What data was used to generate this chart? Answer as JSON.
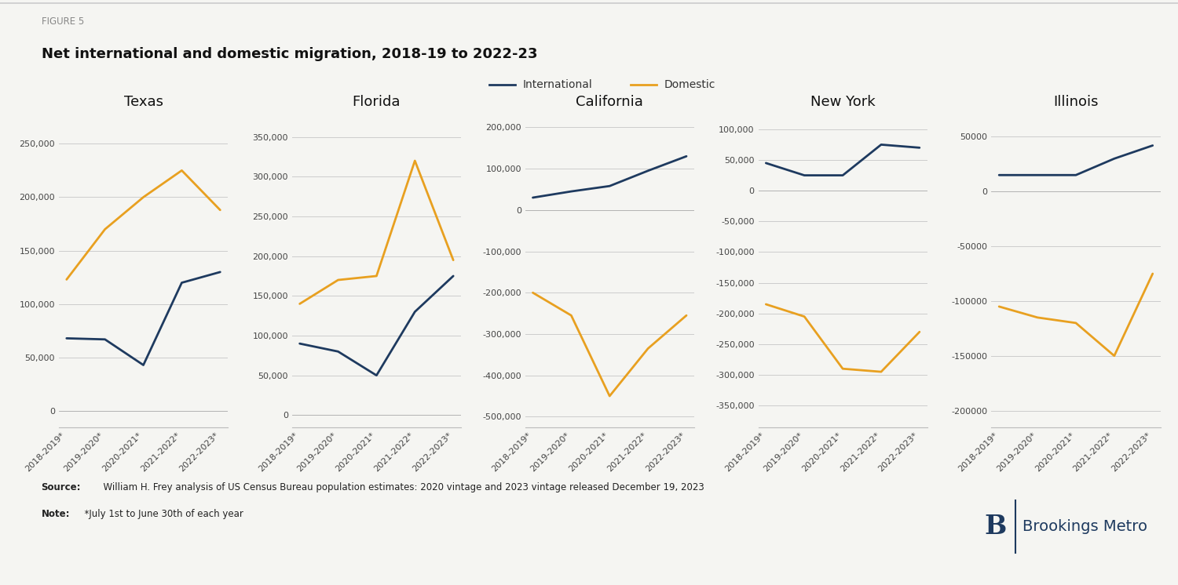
{
  "figure_label": "FIGURE 5",
  "title": "Net international and domestic migration, 2018-19 to 2022-23",
  "x_labels": [
    "2018-2019*",
    "2019-2020*",
    "2020-2021*",
    "2021-2022*",
    "2022-2023*"
  ],
  "international_color": "#1e3a5f",
  "domestic_color": "#e8a020",
  "background_color": "#f5f5f2",
  "panels": [
    {
      "title": "Texas",
      "international": [
        68000,
        67000,
        43000,
        120000,
        130000
      ],
      "domestic": [
        123000,
        170000,
        200000,
        225000,
        188000
      ],
      "ylim": [
        -15000,
        275000
      ],
      "yticks": [
        0,
        50000,
        100000,
        150000,
        200000,
        250000
      ],
      "yticklabels": [
        "0",
        "50,000",
        "100,000",
        "150,000",
        "200,000",
        "250,000"
      ]
    },
    {
      "title": "Florida",
      "international": [
        90000,
        80000,
        50000,
        130000,
        175000
      ],
      "domestic": [
        140000,
        170000,
        175000,
        320000,
        195000
      ],
      "ylim": [
        -15000,
        375000
      ],
      "yticks": [
        0,
        50000,
        100000,
        150000,
        200000,
        250000,
        300000,
        350000
      ],
      "yticklabels": [
        "0",
        "50,000",
        "100,000",
        "150,000",
        "200,000",
        "250,000",
        "300,000",
        "350,000"
      ]
    },
    {
      "title": "California",
      "international": [
        30000,
        45000,
        58000,
        95000,
        130000
      ],
      "domestic": [
        -200000,
        -255000,
        -450000,
        -335000,
        -255000
      ],
      "ylim": [
        -525000,
        225000
      ],
      "yticks": [
        -500000,
        -400000,
        -300000,
        -200000,
        -100000,
        0,
        100000,
        200000
      ],
      "yticklabels": [
        "-500,000",
        "-400,000",
        "-300,000",
        "-200,000",
        "-100,000",
        "0",
        "100,000",
        "200,000"
      ]
    },
    {
      "title": "New York",
      "international": [
        45000,
        25000,
        25000,
        75000,
        70000
      ],
      "domestic": [
        -185000,
        -205000,
        -290000,
        -295000,
        -230000
      ],
      "ylim": [
        -385000,
        120000
      ],
      "yticks": [
        -350000,
        -300000,
        -250000,
        -200000,
        -150000,
        -100000,
        -50000,
        0,
        50000,
        100000
      ],
      "yticklabels": [
        "-350,000",
        "-300,000",
        "-250,000",
        "-200,000",
        "-150,000",
        "-100,000",
        "-50,000",
        "0",
        "50,000",
        "100,000"
      ]
    },
    {
      "title": "Illinois",
      "international": [
        15000,
        15000,
        15000,
        30000,
        42000
      ],
      "domestic": [
        -105000,
        -115000,
        -120000,
        -150000,
        -75000
      ],
      "ylim": [
        -215000,
        68000
      ],
      "yticks": [
        -200000,
        -150000,
        -100000,
        -50000,
        0,
        50000
      ],
      "yticklabels": [
        "-200000",
        "-150000",
        "-100000",
        "-50000",
        "0",
        "50000"
      ]
    }
  ],
  "source_bold": "Source:",
  "source_rest": "  William H. Frey analysis of US Census Bureau population estimates: 2020 vintage and 2023 vintage released December 19, 2023",
  "note_bold": "Note:",
  "note_rest": "  *July 1st to June 30th of each year",
  "legend_labels": [
    "International",
    "Domestic"
  ],
  "figure_label_fontsize": 8.5,
  "title_fontsize": 13,
  "panel_title_fontsize": 13,
  "tick_fontsize": 8,
  "footer_fontsize": 8.5,
  "legend_fontsize": 10,
  "brookings_fontsize": 14,
  "brookings_b_fontsize": 24
}
